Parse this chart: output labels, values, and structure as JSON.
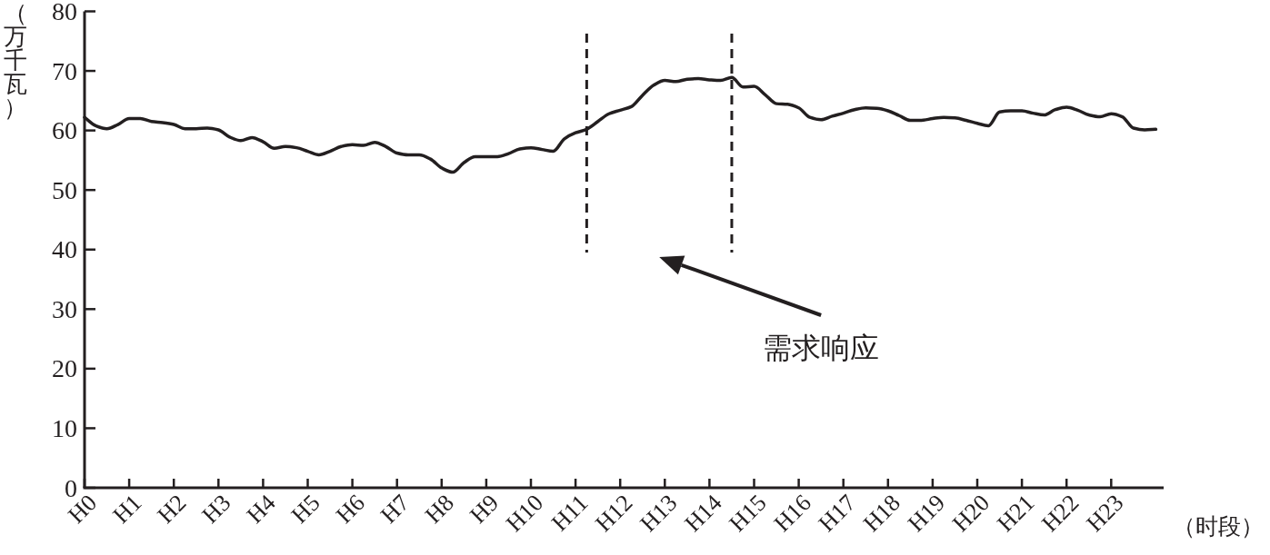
{
  "chart_data": {
    "type": "line",
    "ylabel": "（万千瓦）",
    "xlabel": "（时段）",
    "categories": [
      "H0",
      null,
      null,
      null,
      "H1",
      null,
      null,
      null,
      "H2",
      null,
      null,
      null,
      "H3",
      null,
      null,
      null,
      "H4",
      null,
      null,
      null,
      "H5",
      null,
      null,
      null,
      "H6",
      null,
      null,
      null,
      "H7",
      null,
      null,
      null,
      "H8",
      null,
      null,
      null,
      "H9",
      null,
      null,
      null,
      "H10",
      null,
      null,
      null,
      "H11",
      null,
      null,
      null,
      "H12",
      null,
      null,
      null,
      "H13",
      null,
      null,
      null,
      "H14",
      null,
      null,
      null,
      "H15",
      null,
      null,
      null,
      "H16",
      null,
      null,
      null,
      "H17",
      null,
      null,
      null,
      "H18",
      null,
      null,
      null,
      "H19",
      null,
      null,
      null,
      "H20",
      null,
      null,
      null,
      "H21",
      null,
      null,
      null,
      "H22",
      null,
      null,
      null,
      "H23",
      null,
      null,
      null,
      null
    ],
    "ylim": [
      0,
      80
    ],
    "yticks": [
      0,
      10,
      20,
      30,
      40,
      50,
      60,
      70,
      80
    ],
    "series": [
      {
        "color": "#231f20",
        "line_style": "solid",
        "values": [
          62.2,
          60.8,
          60.3,
          61.0,
          62.0,
          62.0,
          61.5,
          61.3,
          61.0,
          60.3,
          60.3,
          60.4,
          60.1,
          58.9,
          58.3,
          58.8,
          58.1,
          57.0,
          57.3,
          57.1,
          56.5,
          55.9,
          56.5,
          57.3,
          57.6,
          57.5,
          58.0,
          57.3,
          56.2,
          55.9,
          55.9,
          55.2,
          53.7,
          53.0,
          54.6,
          55.6,
          55.6,
          55.6,
          56.1,
          56.9,
          57.1,
          56.8,
          56.5,
          58.6,
          59.6,
          60.2,
          61.5,
          62.8,
          63.4,
          64.0,
          65.9,
          67.6,
          68.4,
          68.2,
          68.6,
          68.7,
          68.5,
          68.4,
          68.9,
          67.3,
          67.4,
          66.0,
          64.5,
          64.4,
          63.8,
          62.2,
          61.8,
          62.4,
          62.9,
          63.5,
          63.8,
          63.7,
          63.3,
          62.5,
          61.7,
          61.7,
          62.0,
          62.2,
          62.1,
          61.7,
          61.2,
          60.8,
          63.1,
          63.3,
          63.3,
          62.9,
          62.6,
          63.5,
          63.9,
          63.4,
          62.6,
          62.3,
          62.8,
          62.3,
          60.4,
          60.1,
          60.2
        ]
      }
    ],
    "annotations": [
      "需求响应"
    ]
  }
}
